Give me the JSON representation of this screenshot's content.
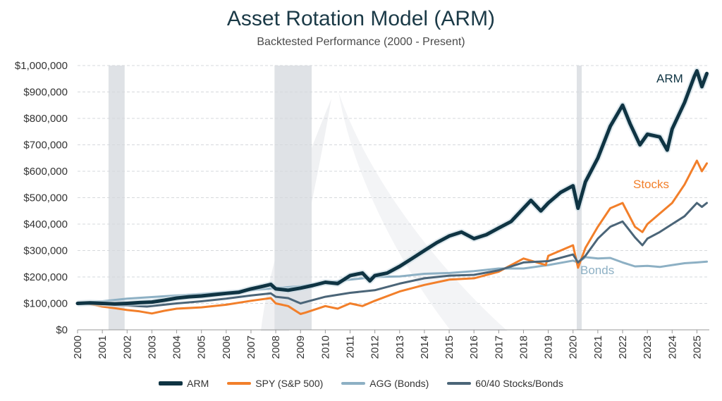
{
  "chart_data": {
    "type": "line",
    "title": "Asset Rotation Model (ARM)",
    "subtitle": "Backtested Performance (2000 - Present)",
    "xlabel": "",
    "ylabel": "",
    "xlim": [
      2000,
      2025.5
    ],
    "ylim": [
      0,
      1000000
    ],
    "y_ticks": [
      "$0",
      "$100,000",
      "$200,000",
      "$300,000",
      "$400,000",
      "$500,000",
      "$600,000",
      "$700,000",
      "$800,000",
      "$900,000",
      "$1,000,000"
    ],
    "x_ticks": [
      "2000",
      "2001",
      "2002",
      "2003",
      "2004",
      "2005",
      "2006",
      "2007",
      "2008",
      "2009",
      "2010",
      "2011",
      "2012",
      "2013",
      "2014",
      "2015",
      "2016",
      "2017",
      "2018",
      "2019",
      "2020",
      "2021",
      "2022",
      "2023",
      "2024",
      "2025"
    ],
    "grid": true,
    "legend_position": "bottom",
    "recession_shading": [
      [
        2001.25,
        2001.9
      ],
      [
        2007.95,
        2009.45
      ],
      [
        2020.15,
        2020.35
      ]
    ],
    "series": [
      {
        "name": "ARM",
        "color": "#0f3443",
        "label": "ARM",
        "x": [
          2000,
          2000.5,
          2001,
          2001.5,
          2002,
          2002.5,
          2003,
          2003.5,
          2004,
          2004.5,
          2005,
          2005.5,
          2006,
          2006.5,
          2007,
          2007.5,
          2007.8,
          2008,
          2008.5,
          2009,
          2009.5,
          2010,
          2010.5,
          2011,
          2011.5,
          2011.8,
          2012,
          2012.5,
          2013,
          2013.5,
          2014,
          2014.5,
          2015,
          2015.5,
          2016,
          2016.5,
          2017,
          2017.5,
          2018,
          2018.3,
          2018.7,
          2019,
          2019.5,
          2020,
          2020.2,
          2020.5,
          2021,
          2021.5,
          2022,
          2022.3,
          2022.7,
          2023,
          2023.5,
          2023.8,
          2024,
          2024.5,
          2024.9,
          2025,
          2025.2,
          2025.4
        ],
        "y": [
          100000,
          102000,
          100000,
          98000,
          100000,
          103000,
          105000,
          112000,
          120000,
          125000,
          128000,
          133000,
          138000,
          142000,
          155000,
          165000,
          172000,
          155000,
          150000,
          158000,
          168000,
          180000,
          175000,
          205000,
          215000,
          185000,
          205000,
          215000,
          240000,
          270000,
          300000,
          330000,
          355000,
          370000,
          345000,
          360000,
          385000,
          410000,
          460000,
          490000,
          450000,
          480000,
          520000,
          545000,
          460000,
          560000,
          650000,
          770000,
          850000,
          780000,
          700000,
          740000,
          730000,
          680000,
          760000,
          860000,
          960000,
          980000,
          920000,
          970000
        ]
      },
      {
        "name": "SPY (S&P 500)",
        "color": "#f27f2a",
        "label": "Stocks",
        "x": [
          2000,
          2000.5,
          2001,
          2001.5,
          2002,
          2002.5,
          2003,
          2003.5,
          2004,
          2005,
          2006,
          2007,
          2007.8,
          2008,
          2008.5,
          2009,
          2009.2,
          2010,
          2010.5,
          2011,
          2011.5,
          2012,
          2013,
          2014,
          2015,
          2016,
          2017,
          2018,
          2018.9,
          2019,
          2020,
          2020.2,
          2020.5,
          2021,
          2021.5,
          2022,
          2022.5,
          2022.8,
          2023,
          2023.5,
          2024,
          2024.5,
          2025,
          2025.2,
          2025.4
        ],
        "y": [
          100000,
          98000,
          88000,
          82000,
          75000,
          70000,
          62000,
          72000,
          80000,
          85000,
          95000,
          110000,
          120000,
          100000,
          90000,
          60000,
          65000,
          90000,
          80000,
          100000,
          90000,
          110000,
          145000,
          170000,
          190000,
          195000,
          220000,
          270000,
          245000,
          280000,
          320000,
          235000,
          310000,
          390000,
          460000,
          480000,
          390000,
          370000,
          400000,
          440000,
          480000,
          550000,
          640000,
          600000,
          630000
        ]
      },
      {
        "name": "AGG (Bonds)",
        "color": "#8db0c4",
        "label": "Bonds",
        "x": [
          2000,
          2001,
          2002,
          2003,
          2004,
          2005,
          2006,
          2007,
          2008,
          2009,
          2010,
          2011,
          2012,
          2013,
          2014,
          2015,
          2016,
          2017,
          2018,
          2019,
          2020,
          2020.2,
          2020.5,
          2021,
          2021.5,
          2022,
          2022.5,
          2023,
          2023.5,
          2024,
          2024.5,
          2025,
          2025.4
        ],
        "y": [
          100000,
          108000,
          118000,
          124000,
          130000,
          136000,
          142000,
          150000,
          158000,
          165000,
          178000,
          190000,
          200000,
          202000,
          212000,
          215000,
          222000,
          232000,
          232000,
          245000,
          262000,
          255000,
          275000,
          270000,
          272000,
          255000,
          240000,
          242000,
          238000,
          245000,
          252000,
          255000,
          258000
        ]
      },
      {
        "name": "60/40 Stocks/Bonds",
        "color": "#4b6578",
        "label": "",
        "x": [
          2000,
          2001,
          2002,
          2002.8,
          2003,
          2004,
          2005,
          2006,
          2007,
          2007.8,
          2008,
          2008.5,
          2009,
          2009.2,
          2010,
          2011,
          2012,
          2013,
          2014,
          2015,
          2016,
          2017,
          2018,
          2019,
          2020,
          2020.2,
          2020.5,
          2021,
          2021.5,
          2022,
          2022.5,
          2022.8,
          2023,
          2023.5,
          2024,
          2024.5,
          2025,
          2025.2,
          2025.4
        ],
        "y": [
          100000,
          98000,
          92000,
          88000,
          90000,
          100000,
          108000,
          118000,
          130000,
          138000,
          125000,
          120000,
          100000,
          105000,
          125000,
          140000,
          150000,
          175000,
          195000,
          205000,
          208000,
          225000,
          255000,
          260000,
          285000,
          255000,
          280000,
          345000,
          390000,
          410000,
          350000,
          320000,
          345000,
          370000,
          400000,
          430000,
          480000,
          465000,
          480000
        ]
      }
    ]
  }
}
